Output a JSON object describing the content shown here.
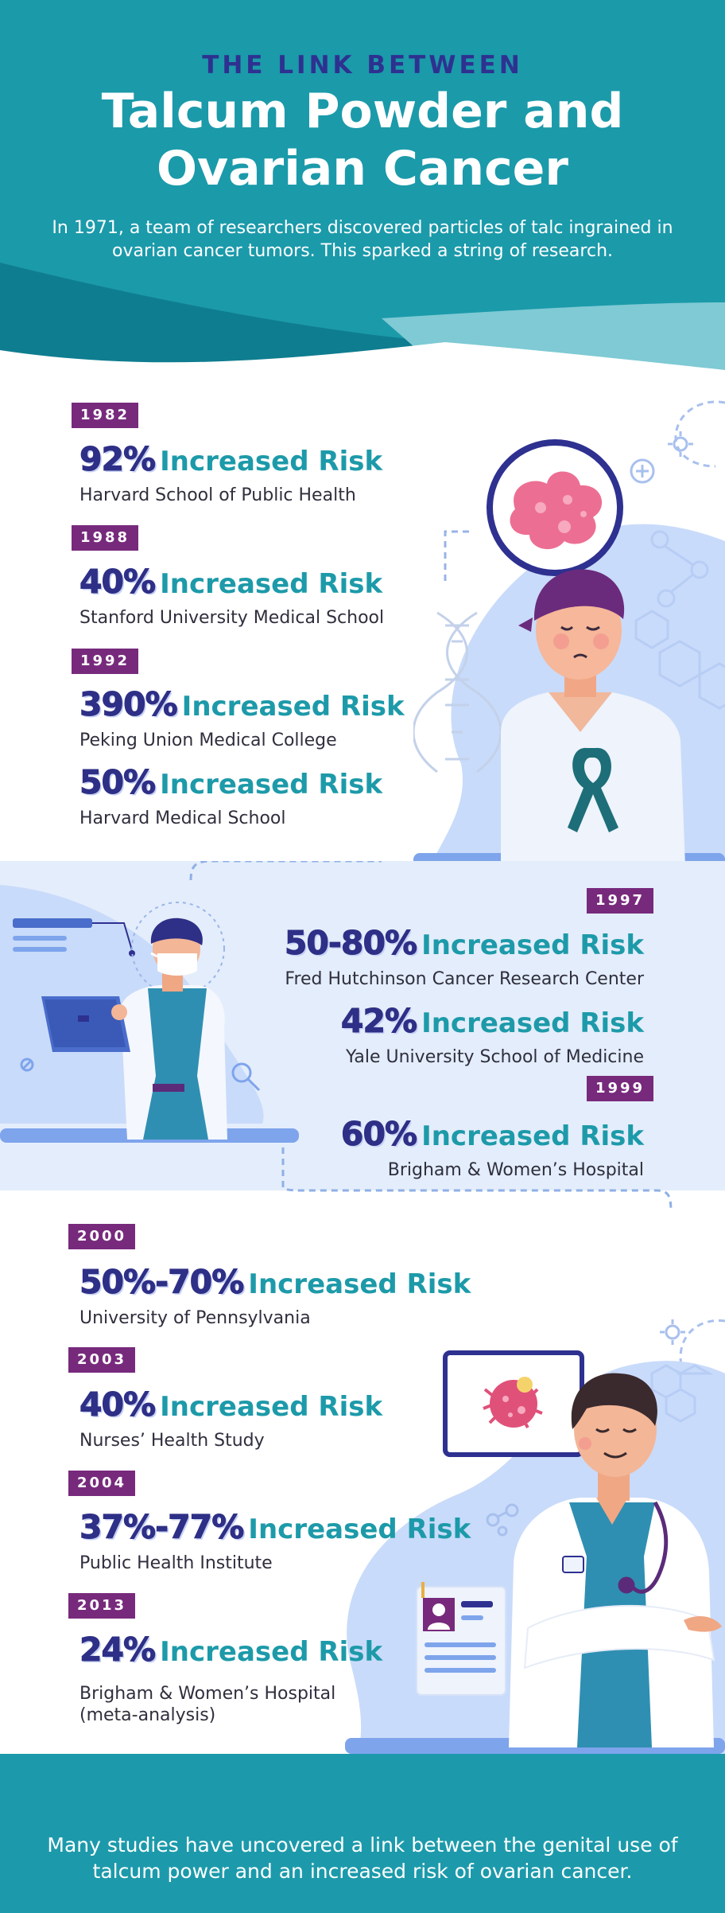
{
  "header": {
    "eyebrow": "THE LINK BETWEEN",
    "title_line1": "Talcum Powder and",
    "title_line2": "Ovarian Cancer",
    "intro": "In 1971, a team of researchers discovered particles of talc ingrained in ovarian cancer tumors. This sparked a string of research."
  },
  "risk_label": "Increased Risk",
  "years": {
    "y1982": "1982",
    "y1988": "1988",
    "y1992": "1992",
    "y1997": "1997",
    "y1999": "1999",
    "y2000": "2000",
    "y2003": "2003",
    "y2004": "2004",
    "y2013": "2013"
  },
  "studies": [
    {
      "percent": "92%",
      "source": "Harvard School of Public Health"
    },
    {
      "percent": "40%",
      "source": "Stanford University Medical School"
    },
    {
      "percent": "390%",
      "source": "Peking Union Medical College"
    },
    {
      "percent": "50%",
      "source": "Harvard Medical School"
    },
    {
      "percent": "50-80%",
      "source": "Fred Hutchinson Cancer Research Center"
    },
    {
      "percent": "42%",
      "source": "Yale University School of Medicine"
    },
    {
      "percent": "60%",
      "source": "Brigham & Women’s Hospital"
    },
    {
      "percent": "50%-70%",
      "source": "University of Pennsylvania"
    },
    {
      "percent": "40%",
      "source": "Nurses’ Health Study"
    },
    {
      "percent": "37%-77%",
      "source": "Public Health Institute"
    },
    {
      "percent": "24%",
      "source_line1": "Brigham & Women’s Hospital",
      "source_line2": "(meta-analysis)"
    }
  ],
  "footer": {
    "text": "Many studies have uncovered a link between the genital use of talcum power and an increased risk of ovarian cancer."
  },
  "colors": {
    "header_teal": "#1b9aaa",
    "header_dark_teal": "#117f92",
    "navy": "#2e2f86",
    "teal_text": "#1d9aa9",
    "year_purple": "#772a7c",
    "light_blue": "#c9dbfa"
  },
  "icons": [
    "cancer-cell-icon",
    "dna-icon",
    "awareness-ribbon-icon",
    "laptop-icon",
    "molecule-icon",
    "id-card-icon",
    "stethoscope-icon",
    "magnifier-icon"
  ]
}
